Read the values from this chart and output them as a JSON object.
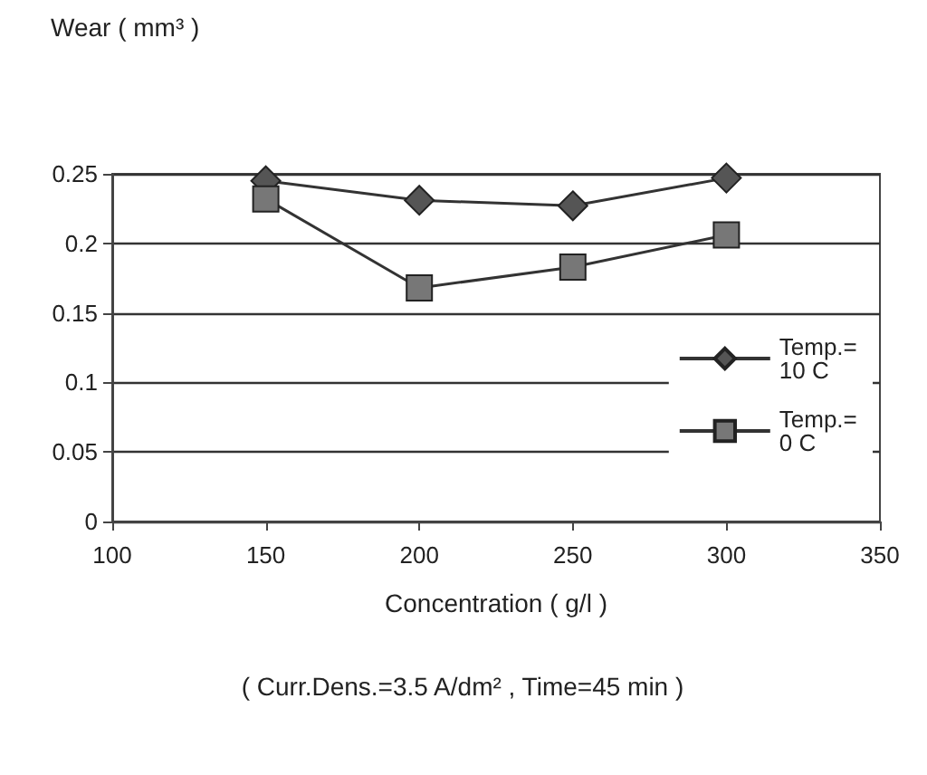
{
  "chart_data": {
    "type": "line",
    "ylabel": "Wear ( mm³ )",
    "xlabel": "Concentration ( g/l )",
    "annotations": [
      "( Curr.Dens.=3.5 A/dm² , Time=45 min )"
    ],
    "x": [
      150,
      200,
      250,
      300
    ],
    "series": [
      {
        "name": "Temp.= 10 C",
        "color": "#555555",
        "marker": "diamond",
        "values": [
          0.245,
          0.231,
          0.227,
          0.247
        ]
      },
      {
        "name": "Temp.= 0 C",
        "color": "#777777",
        "marker": "square",
        "values": [
          0.232,
          0.168,
          0.183,
          0.206
        ]
      }
    ],
    "xlim": [
      100,
      350
    ],
    "xticks": [
      100,
      150,
      200,
      250,
      300,
      350
    ],
    "ylim": [
      0,
      0.25
    ],
    "yticks": [
      0,
      0.05,
      0.1,
      0.15,
      0.2,
      0.25
    ],
    "grid": "y",
    "legend": "right",
    "line_style": "solid"
  }
}
